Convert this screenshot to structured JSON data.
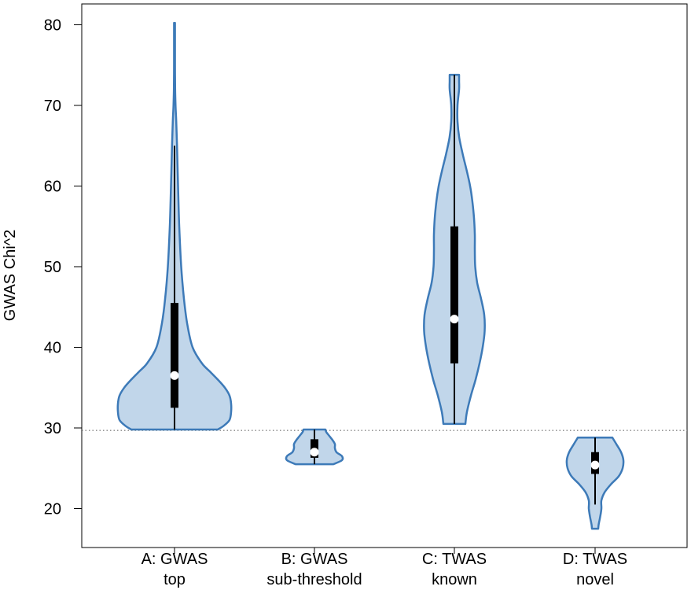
{
  "chart_data": {
    "type": "violin",
    "ylabel": "GWAS Chi^2",
    "ylim": [
      15,
      82
    ],
    "yticks": [
      20,
      30,
      40,
      50,
      60,
      70,
      80
    ],
    "reference_line": 29.7,
    "colors": {
      "fill": "#c1d6ea",
      "stroke": "#3d7ab8",
      "box": "#000000",
      "median": "#ffffff",
      "refline": "#555555"
    },
    "violins": [
      {
        "line1": "A: GWAS",
        "line2": "top",
        "whisker": [
          29.8,
          65
        ],
        "box": [
          32.5,
          45.5
        ],
        "median": 36.5,
        "profile": [
          [
            29.8,
            5.5
          ],
          [
            30.3,
            6.3
          ],
          [
            31,
            7.0
          ],
          [
            32,
            7.2
          ],
          [
            33,
            7.2
          ],
          [
            34,
            7.0
          ],
          [
            35,
            6.4
          ],
          [
            36,
            5.5
          ],
          [
            37,
            4.5
          ],
          [
            38,
            3.5
          ],
          [
            40,
            2.3
          ],
          [
            43,
            1.6
          ],
          [
            46,
            1.2
          ],
          [
            50,
            0.85
          ],
          [
            55,
            0.6
          ],
          [
            60,
            0.45
          ],
          [
            65,
            0.32
          ],
          [
            68,
            0.22
          ],
          [
            70,
            0.13
          ],
          [
            72,
            0.08
          ],
          [
            75,
            0.06
          ],
          [
            78,
            0.06
          ],
          [
            80,
            0.06
          ],
          [
            80.2,
            0.06
          ]
        ]
      },
      {
        "line1": "B: GWAS",
        "line2": "sub-threshold",
        "whisker": [
          25.5,
          29.8
        ],
        "box": [
          26.3,
          28.6
        ],
        "median": 27.0,
        "profile": [
          [
            25.5,
            2.4
          ],
          [
            26,
            3.5
          ],
          [
            26.5,
            3.5
          ],
          [
            27,
            2.8
          ],
          [
            27.5,
            2.6
          ],
          [
            28,
            2.6
          ],
          [
            28.5,
            2.3
          ],
          [
            29,
            1.9
          ],
          [
            29.5,
            1.5
          ],
          [
            29.8,
            1.4
          ]
        ]
      },
      {
        "line1": "C: TWAS",
        "line2": "known",
        "whisker": [
          30.5,
          73.8
        ],
        "box": [
          38,
          55
        ],
        "median": 43.5,
        "profile": [
          [
            30.5,
            1.4
          ],
          [
            32,
            1.6
          ],
          [
            34,
            2.1
          ],
          [
            36,
            2.7
          ],
          [
            38,
            3.2
          ],
          [
            40,
            3.6
          ],
          [
            42,
            3.85
          ],
          [
            44,
            3.8
          ],
          [
            46,
            3.4
          ],
          [
            48,
            2.9
          ],
          [
            50,
            2.65
          ],
          [
            52,
            2.6
          ],
          [
            54,
            2.6
          ],
          [
            56,
            2.5
          ],
          [
            58,
            2.3
          ],
          [
            60,
            2.0
          ],
          [
            62,
            1.55
          ],
          [
            64,
            1.05
          ],
          [
            66,
            0.62
          ],
          [
            68,
            0.4
          ],
          [
            70,
            0.4
          ],
          [
            72,
            0.6
          ],
          [
            73,
            0.6
          ],
          [
            73.8,
            0.6
          ]
        ]
      },
      {
        "line1": "D: TWAS",
        "line2": "novel",
        "whisker": [
          20.5,
          28.8
        ],
        "box": [
          24.3,
          27.0
        ],
        "median": 25.4,
        "profile": [
          [
            17.5,
            0.4
          ],
          [
            18,
            0.45
          ],
          [
            19,
            0.65
          ],
          [
            20,
            0.8
          ],
          [
            21,
            0.8
          ],
          [
            22,
            1.2
          ],
          [
            23,
            2.0
          ],
          [
            24,
            3.0
          ],
          [
            25,
            3.5
          ],
          [
            26,
            3.6
          ],
          [
            27,
            3.3
          ],
          [
            28,
            2.7
          ],
          [
            28.8,
            2.2
          ]
        ]
      }
    ]
  }
}
